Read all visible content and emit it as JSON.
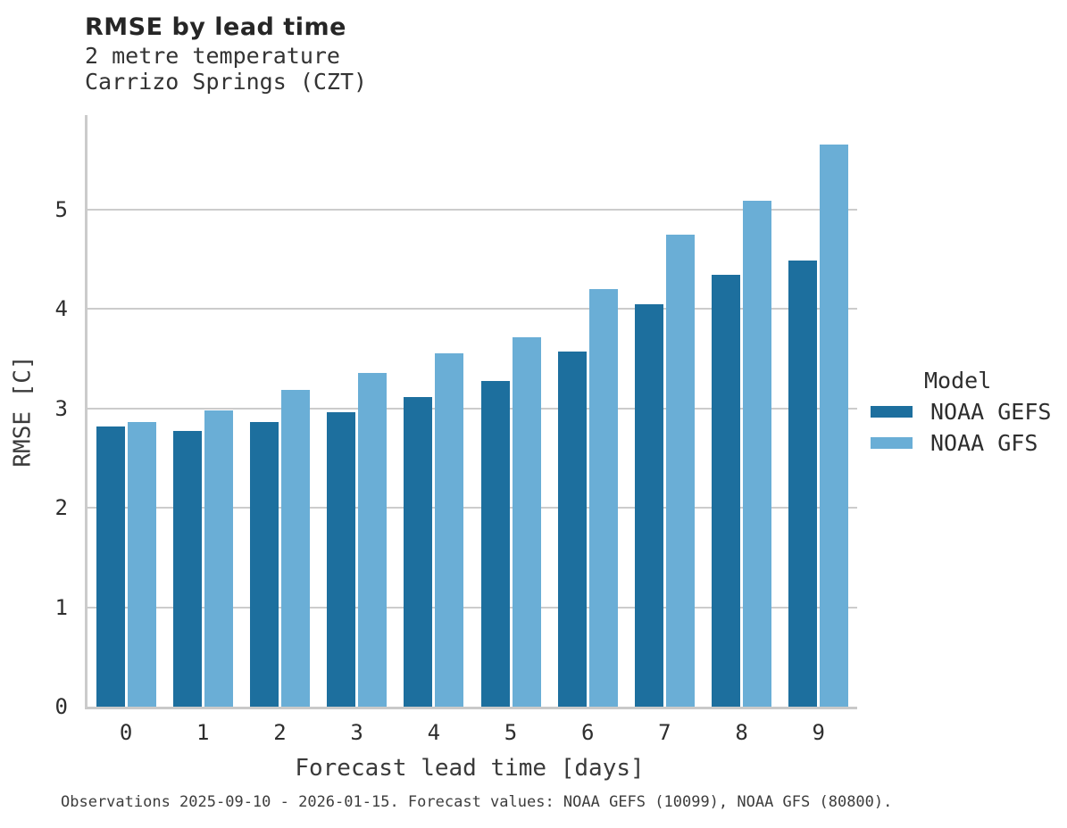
{
  "header": {
    "title": "RMSE by lead time",
    "subtitle1": "2 metre temperature",
    "subtitle2": "Carrizo Springs (CZT)"
  },
  "footer": {
    "note": "Observations 2025-09-10 - 2026-01-15. Forecast values: NOAA GEFS (10099), NOAA GFS (80800)."
  },
  "legend": {
    "title": "Model",
    "entries": [
      {
        "label": "NOAA GEFS",
        "color": "#1d6f9e"
      },
      {
        "label": "NOAA GFS",
        "color": "#6aaed6"
      }
    ]
  },
  "colors": {
    "gefs_dark_blue": "#1d6f9e",
    "gfs_light_blue": "#6aaed6",
    "gridline_gray": "#cccccc",
    "axis_gray": "#c9c9c9"
  },
  "chart_data": {
    "type": "bar",
    "title": "RMSE by lead time",
    "subtitle": "2 metre temperature — Carrizo Springs (CZT)",
    "xlabel": "Forecast lead time [days]",
    "ylabel": "RMSE [C]",
    "categories": [
      "0",
      "1",
      "2",
      "3",
      "4",
      "5",
      "6",
      "7",
      "8",
      "9"
    ],
    "series": [
      {
        "name": "NOAA GEFS",
        "color": "#1d6f9e",
        "values": [
          2.82,
          2.77,
          2.86,
          2.96,
          3.11,
          3.28,
          3.57,
          4.05,
          4.34,
          4.49
        ]
      },
      {
        "name": "NOAA GFS",
        "color": "#6aaed6",
        "values": [
          2.86,
          2.98,
          3.19,
          3.36,
          3.55,
          3.72,
          4.2,
          4.75,
          5.09,
          5.65
        ]
      }
    ],
    "ylim": [
      0,
      5.95
    ],
    "yticks": [
      0,
      1,
      2,
      3,
      4,
      5
    ],
    "grid": "horizontal",
    "legend_position": "right"
  }
}
